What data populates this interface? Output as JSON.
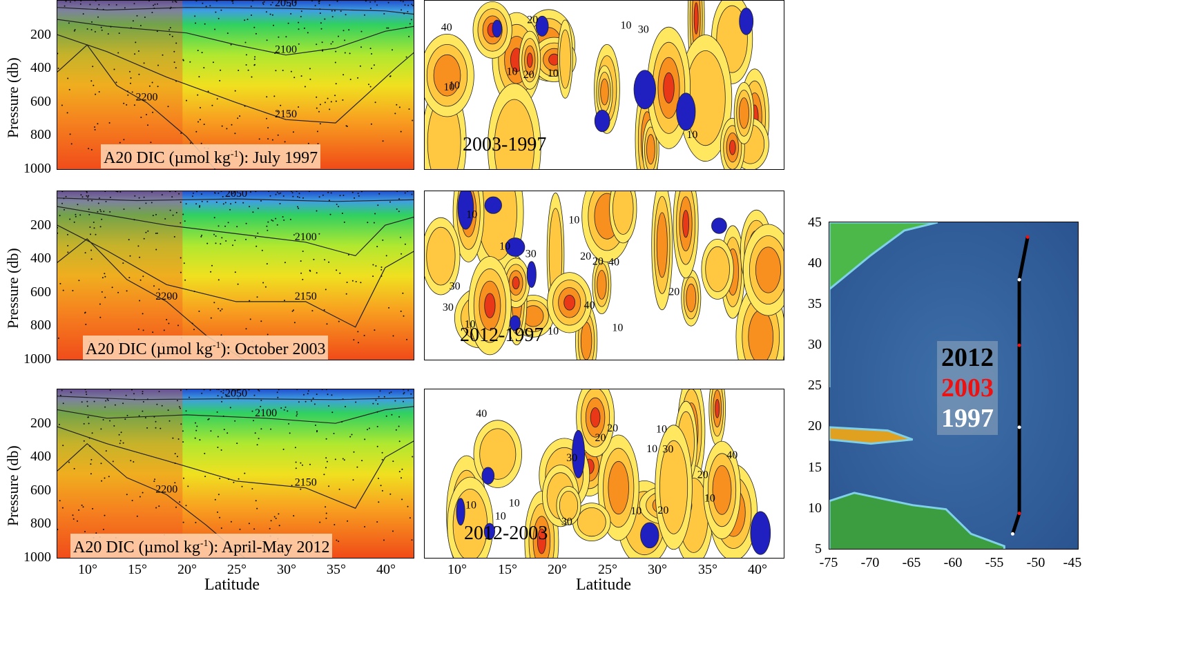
{
  "chart_data": [
    {
      "type": "heatmap",
      "subtype": "contour-section",
      "caption": "A20 DIC (µmol kg",
      "caption_sup": "-1",
      "caption_tail": "): July 1997",
      "ylabel": "Pressure (db)",
      "yticks": [
        "200",
        "400",
        "600",
        "800",
        "1000"
      ],
      "ylim": [
        0,
        1000
      ],
      "xlim": [
        7,
        43
      ],
      "contours": [
        {
          "label": "2050",
          "depth_profile": [
            [
              7,
              40
            ],
            [
              12,
              55
            ],
            [
              20,
              40
            ],
            [
              30,
              45
            ],
            [
              40,
              60
            ],
            [
              43,
              80
            ]
          ]
        },
        {
          "label": "2100",
          "depth_profile": [
            [
              7,
              110
            ],
            [
              12,
              150
            ],
            [
              20,
              190
            ],
            [
              25,
              260
            ],
            [
              30,
              320
            ],
            [
              35,
              280
            ],
            [
              40,
              180
            ],
            [
              43,
              150
            ]
          ]
        },
        {
          "label": "2150",
          "depth_profile": [
            [
              7,
              200
            ],
            [
              12,
              300
            ],
            [
              18,
              450
            ],
            [
              25,
              600
            ],
            [
              30,
              700
            ],
            [
              35,
              720
            ],
            [
              38,
              560
            ],
            [
              41,
              400
            ],
            [
              43,
              300
            ]
          ]
        },
        {
          "label": "2200",
          "depth_profile": [
            [
              7,
              420
            ],
            [
              10,
              260
            ],
            [
              13,
              500
            ],
            [
              16,
              600
            ],
            [
              20,
              800
            ],
            [
              23,
              1000
            ]
          ]
        }
      ]
    },
    {
      "type": "heatmap",
      "subtype": "contour-section",
      "caption": "2003-1997",
      "ylim": [
        0,
        1000
      ],
      "xlim": [
        7,
        43
      ],
      "contour_labels": [
        "10",
        "20",
        "30",
        "40",
        "10",
        "20",
        "10",
        "10",
        "10",
        "10"
      ]
    },
    {
      "type": "heatmap",
      "subtype": "contour-section",
      "caption": "A20 DIC (µmol kg",
      "caption_sup": "-1",
      "caption_tail": "): October 2003",
      "ylabel": "Pressure (db)",
      "yticks": [
        "200",
        "400",
        "600",
        "800",
        "1000"
      ],
      "ylim": [
        0,
        1000
      ],
      "xlim": [
        7,
        43
      ],
      "contours": [
        {
          "label": "2050",
          "depth_profile": [
            [
              7,
              40
            ],
            [
              15,
              55
            ],
            [
              25,
              45
            ],
            [
              35,
              60
            ],
            [
              43,
              50
            ]
          ]
        },
        {
          "label": "2100",
          "depth_profile": [
            [
              7,
              90
            ],
            [
              12,
              140
            ],
            [
              18,
              200
            ],
            [
              25,
              250
            ],
            [
              32,
              300
            ],
            [
              37,
              380
            ],
            [
              40,
              200
            ],
            [
              43,
              150
            ]
          ]
        },
        {
          "label": "2150",
          "depth_profile": [
            [
              7,
              200
            ],
            [
              12,
              350
            ],
            [
              18,
              550
            ],
            [
              25,
              650
            ],
            [
              32,
              650
            ],
            [
              37,
              800
            ],
            [
              40,
              450
            ],
            [
              43,
              350
            ]
          ]
        },
        {
          "label": "2200",
          "depth_profile": [
            [
              7,
              420
            ],
            [
              10,
              280
            ],
            [
              14,
              520
            ],
            [
              18,
              650
            ],
            [
              22,
              850
            ],
            [
              26,
              1000
            ]
          ]
        }
      ]
    },
    {
      "type": "heatmap",
      "subtype": "contour-section",
      "caption": "2012-1997",
      "ylim": [
        0,
        1000
      ],
      "xlim": [
        7,
        43
      ],
      "contour_labels": [
        "10",
        "20",
        "30",
        "40",
        "10",
        "20",
        "30",
        "10",
        "10",
        "10",
        "30",
        "20",
        "10",
        "40"
      ]
    },
    {
      "type": "heatmap",
      "subtype": "contour-section",
      "caption": "A20 DIC (µmol kg",
      "caption_sup": "-1",
      "caption_tail": "): April-May 2012",
      "ylabel": "Pressure (db)",
      "yticks": [
        "200",
        "400",
        "600",
        "800",
        "1000"
      ],
      "ylim": [
        0,
        1000
      ],
      "xlim": [
        7,
        43
      ],
      "xticks": [
        "10°",
        "15°",
        "20°",
        "25°",
        "30°",
        "35°",
        "40°"
      ],
      "xlabel": "Latitude",
      "contours": [
        {
          "label": "2050",
          "depth_profile": [
            [
              7,
              40
            ],
            [
              15,
              60
            ],
            [
              25,
              55
            ],
            [
              35,
              60
            ],
            [
              43,
              50
            ]
          ]
        },
        {
          "label": "2100",
          "depth_profile": [
            [
              7,
              120
            ],
            [
              12,
              170
            ],
            [
              20,
              150
            ],
            [
              28,
              170
            ],
            [
              35,
              200
            ],
            [
              40,
              120
            ],
            [
              43,
              100
            ]
          ]
        },
        {
          "label": "2150",
          "depth_profile": [
            [
              7,
              220
            ],
            [
              12,
              320
            ],
            [
              18,
              420
            ],
            [
              25,
              540
            ],
            [
              32,
              580
            ],
            [
              37,
              700
            ],
            [
              40,
              400
            ],
            [
              43,
              300
            ]
          ]
        },
        {
          "label": "2200",
          "depth_profile": [
            [
              7,
              480
            ],
            [
              10,
              320
            ],
            [
              14,
              520
            ],
            [
              18,
              620
            ],
            [
              22,
              800
            ],
            [
              26,
              1000
            ]
          ]
        }
      ]
    },
    {
      "type": "heatmap",
      "subtype": "contour-section",
      "caption": "2012-2003",
      "ylim": [
        0,
        1000
      ],
      "xlim": [
        7,
        43
      ],
      "xticks": [
        "10°",
        "15°",
        "20°",
        "25°",
        "30°",
        "35°",
        "40°"
      ],
      "xlabel": "Latitude",
      "contour_labels": [
        "10",
        "20",
        "30",
        "40",
        "10",
        "10",
        "20",
        "30",
        "10",
        "20",
        "10",
        "30",
        "10",
        "20",
        "40",
        "10"
      ]
    },
    {
      "type": "scatter",
      "subtype": "map",
      "xticks": [
        "-75",
        "-70",
        "-65",
        "-60",
        "-55",
        "-50",
        "-45"
      ],
      "yticks": [
        "5",
        "10",
        "15",
        "20",
        "25",
        "30",
        "35",
        "40",
        "45"
      ],
      "xlim": [
        -75,
        -45
      ],
      "ylim": [
        5,
        45
      ],
      "legend": [
        {
          "name": "2012",
          "color": "#000000"
        },
        {
          "name": "2003",
          "color": "#ee1111"
        },
        {
          "name": "1997",
          "color": "#ffffff"
        }
      ],
      "track": [
        [
          -53.0,
          7.0
        ],
        [
          -52.2,
          9.5
        ],
        [
          -52.2,
          20
        ],
        [
          -52.2,
          30
        ],
        [
          -52.2,
          38
        ],
        [
          -51.2,
          43.2
        ]
      ]
    }
  ]
}
